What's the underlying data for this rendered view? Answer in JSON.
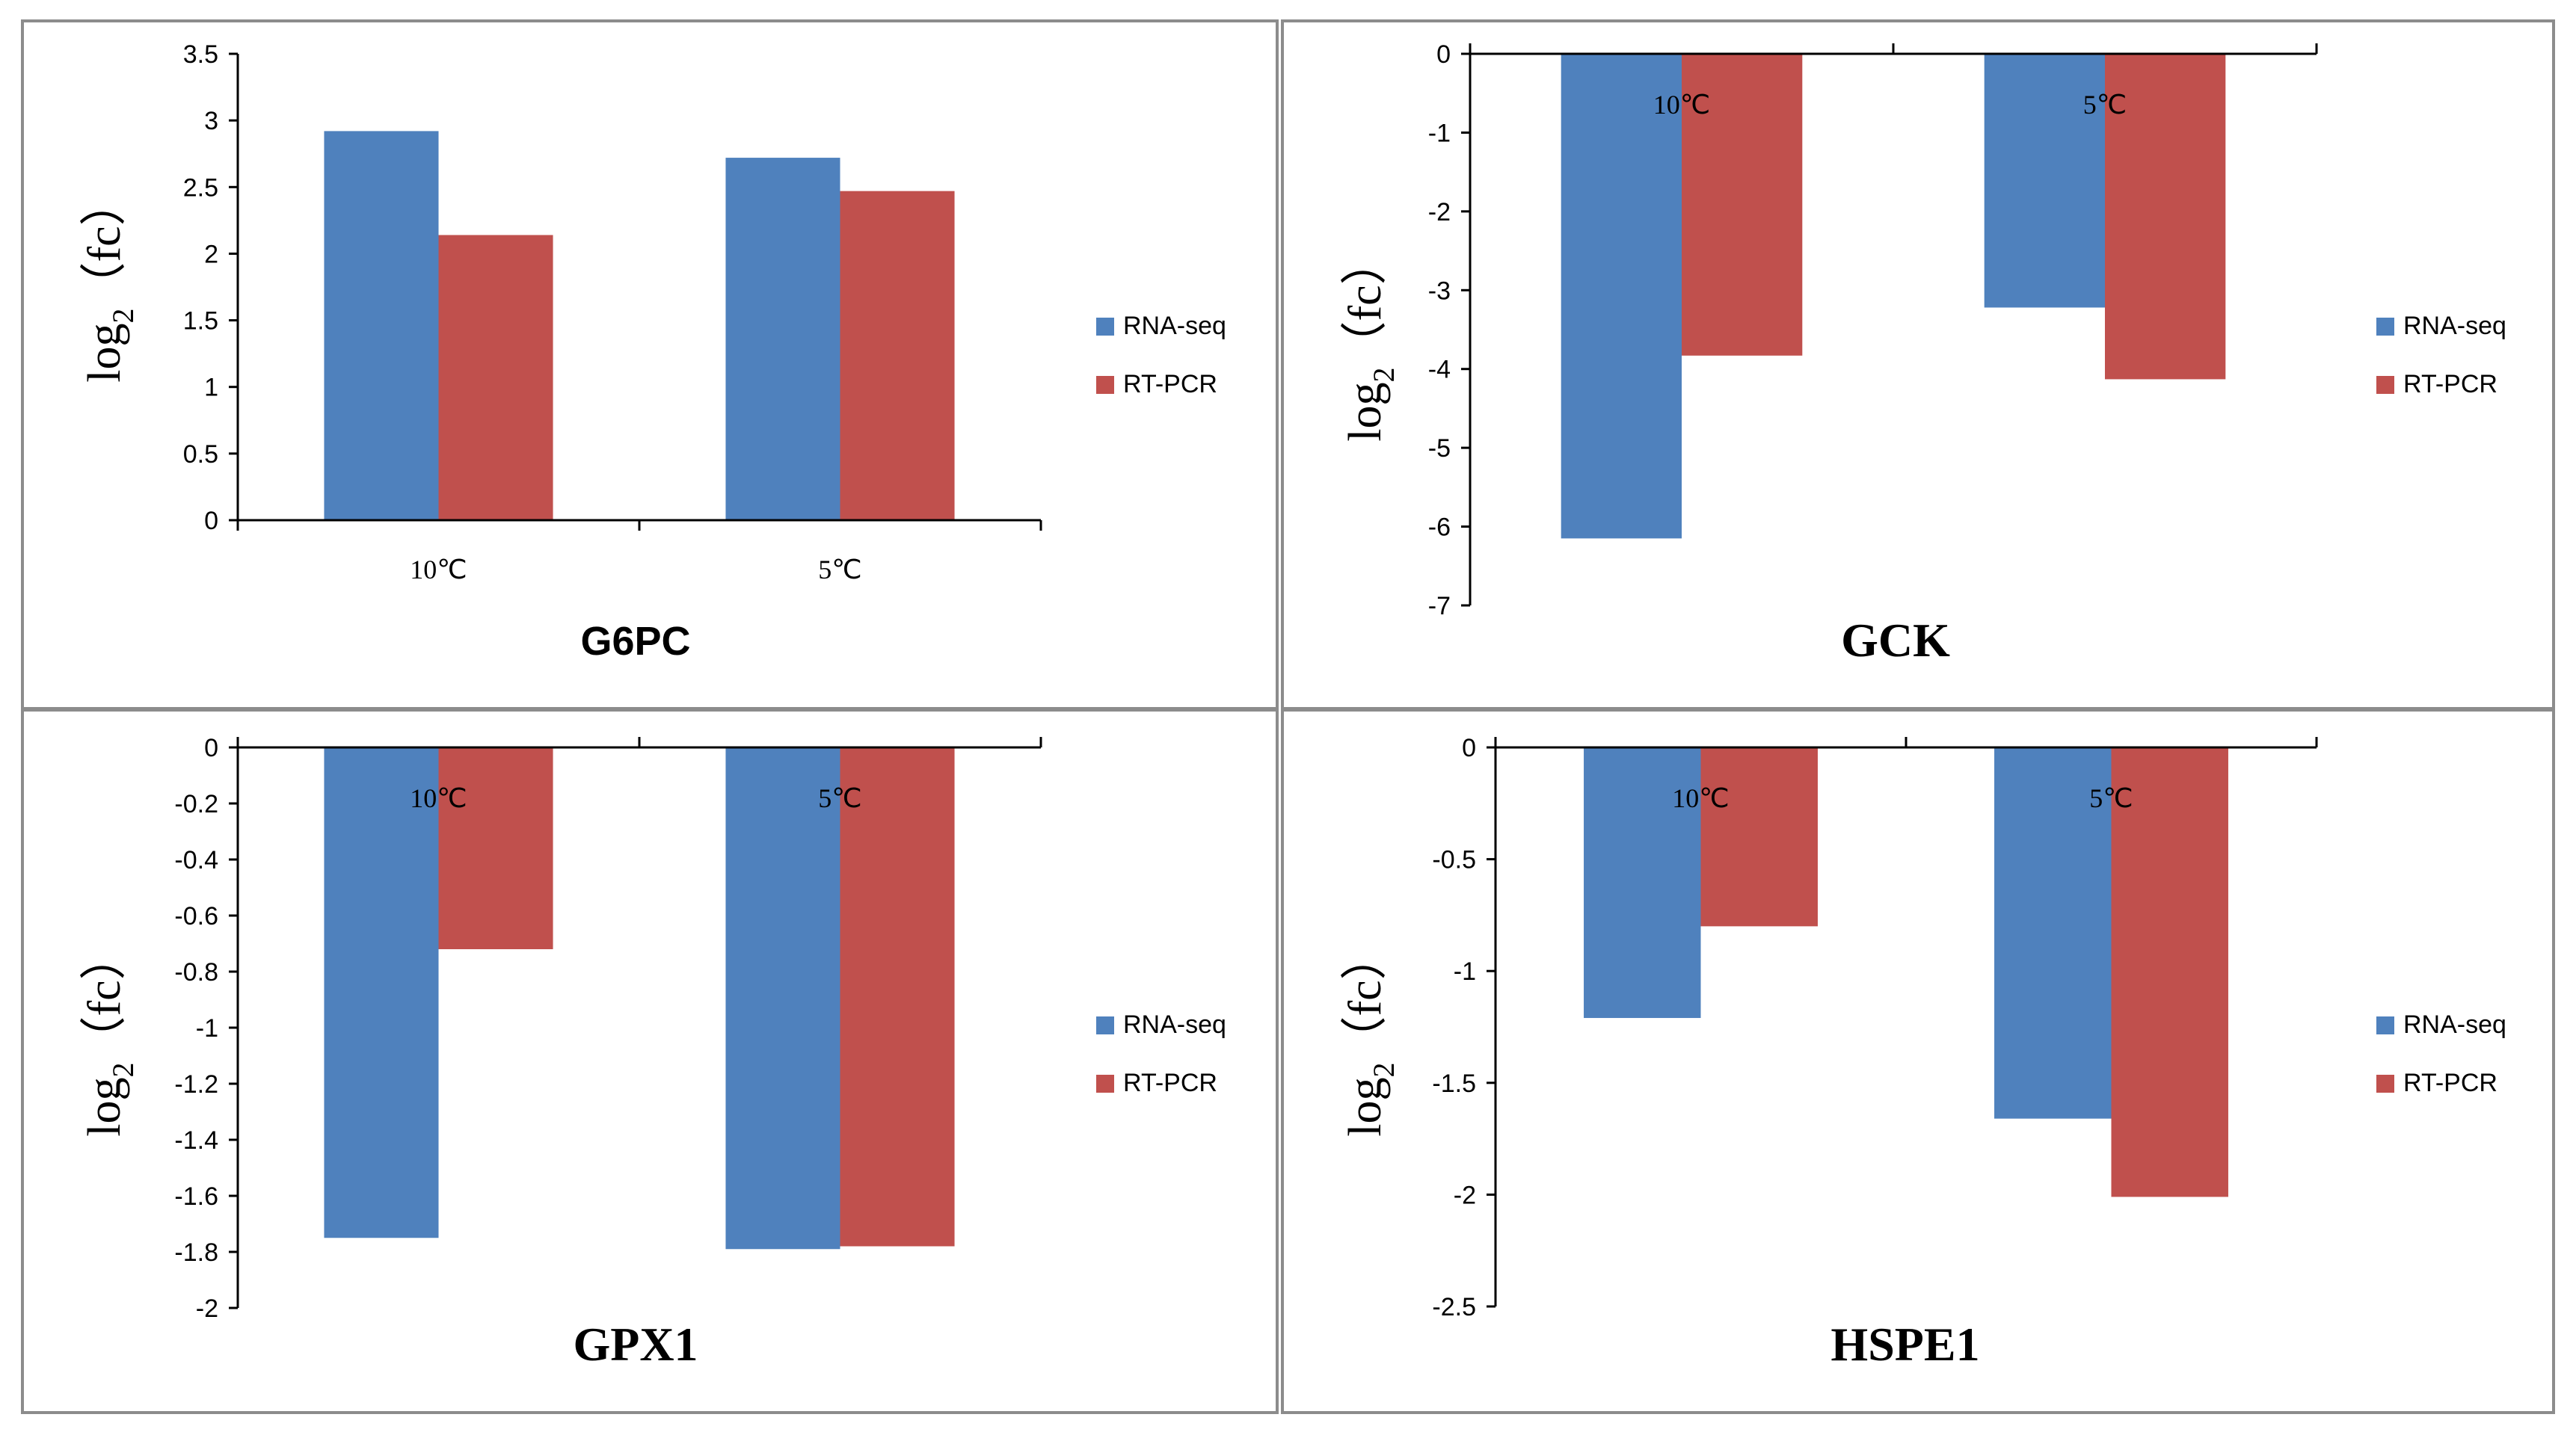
{
  "colors": {
    "rna_seq": "#4F81BD",
    "rt_pcr": "#C0504D",
    "frame": "#8c8c8c",
    "axis": "#000000"
  },
  "legend": {
    "rna_seq": "RNA-seq",
    "rt_pcr": "RT-PCR"
  },
  "ylabel": {
    "main": "log",
    "sub": "2",
    "suffix": "（fc）"
  },
  "chart_data": [
    {
      "type": "bar",
      "title": "G6PC",
      "categories": [
        "10℃",
        "5℃"
      ],
      "category_label_position": "below-axis",
      "series": [
        {
          "name": "RNA-seq",
          "values": [
            2.92,
            2.72
          ]
        },
        {
          "name": "RT-PCR",
          "values": [
            2.14,
            2.47
          ]
        }
      ],
      "ylim": [
        0,
        3.5
      ],
      "yticks": [
        "3.5",
        "3",
        "2.5",
        "2",
        "1.5",
        "1",
        "0.5",
        "0"
      ],
      "xlabel": "",
      "ylabel": "log2（fc）",
      "legend": "right"
    },
    {
      "type": "bar",
      "title": "GCK",
      "categories": [
        "10℃",
        "5℃"
      ],
      "category_label_position": "at-zero-line",
      "series": [
        {
          "name": "RNA-seq",
          "values": [
            -6.15,
            -3.22
          ]
        },
        {
          "name": "RT-PCR",
          "values": [
            -3.83,
            -4.13
          ]
        }
      ],
      "ylim": [
        -7,
        0
      ],
      "yticks": [
        "0",
        "-1",
        "-2",
        "-3",
        "-4",
        "-5",
        "-6",
        "-7"
      ],
      "xlabel": "",
      "ylabel": "log2（fc）",
      "legend": "right"
    },
    {
      "type": "bar",
      "title": "GPX1",
      "categories": [
        "10℃",
        "5℃"
      ],
      "category_label_position": "at-zero-line",
      "series": [
        {
          "name": "RNA-seq",
          "values": [
            -1.75,
            -1.79
          ]
        },
        {
          "name": "RT-PCR",
          "values": [
            -0.72,
            -1.78
          ]
        }
      ],
      "ylim": [
        -2,
        0
      ],
      "yticks": [
        "0",
        "-0.2",
        "-0.4",
        "-0.6",
        "-0.8",
        "-1",
        "-1.2",
        "-1.4",
        "-1.6",
        "-1.8",
        "-2"
      ],
      "xlabel": "",
      "ylabel": "log2（fc）",
      "legend": "right"
    },
    {
      "type": "bar",
      "title": "HSPE1",
      "categories": [
        "10℃",
        "5℃"
      ],
      "category_label_position": "at-zero-line",
      "series": [
        {
          "name": "RNA-seq",
          "values": [
            -1.21,
            -1.66
          ]
        },
        {
          "name": "RT-PCR",
          "values": [
            -0.8,
            -2.01
          ]
        }
      ],
      "ylim": [
        -2.5,
        0
      ],
      "yticks": [
        "0",
        "-0.5",
        "-1",
        "-1.5",
        "-2",
        "-2.5"
      ],
      "xlabel": "",
      "ylabel": "log2（fc）",
      "legend": "right"
    }
  ]
}
